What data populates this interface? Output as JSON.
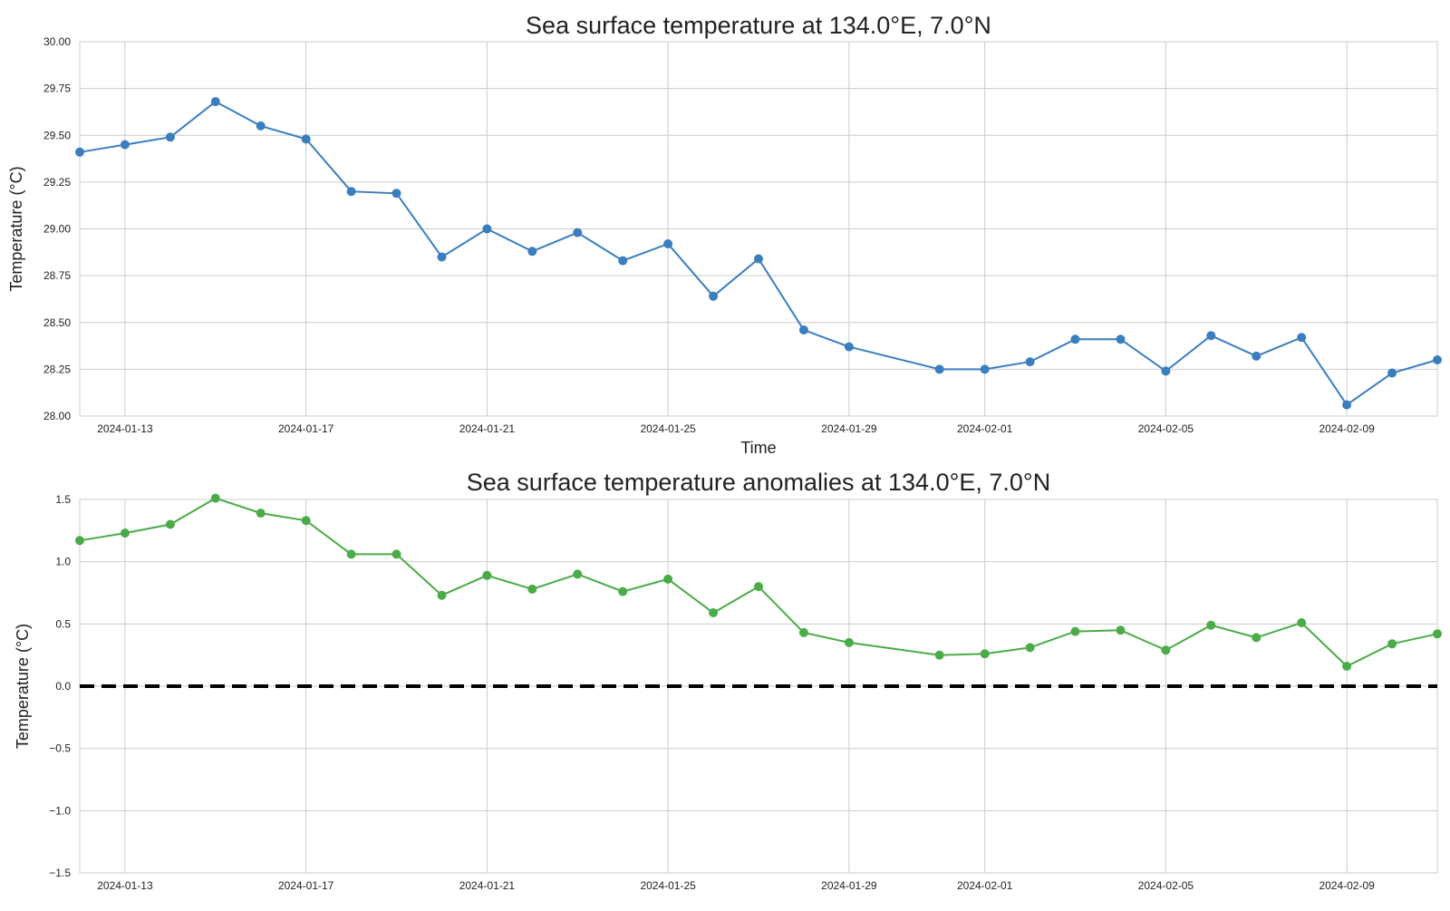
{
  "chart_data": [
    {
      "type": "line",
      "title": "Sea surface temperature at 134.0°E, 7.0°N",
      "xlabel": "Time",
      "ylabel": "Temperature (°C)",
      "ylim": [
        28.0,
        30.0
      ],
      "xlim": [
        "2024-01-12",
        "2024-02-11"
      ],
      "grid": true,
      "yticks": [
        "28.00",
        "28.25",
        "28.50",
        "28.75",
        "29.00",
        "29.25",
        "29.50",
        "29.75",
        "30.00"
      ],
      "xticks": [
        "2024-01-13",
        "2024-01-17",
        "2024-01-21",
        "2024-01-25",
        "2024-01-29",
        "2024-02-01",
        "2024-02-05",
        "2024-02-09"
      ],
      "series": [
        {
          "color": "#3a7ebf",
          "x": [
            "2024-01-12",
            "2024-01-13",
            "2024-01-14",
            "2024-01-15",
            "2024-01-16",
            "2024-01-17",
            "2024-01-18",
            "2024-01-19",
            "2024-01-20",
            "2024-01-21",
            "2024-01-22",
            "2024-01-23",
            "2024-01-24",
            "2024-01-25",
            "2024-01-26",
            "2024-01-27",
            "2024-01-28",
            "2024-01-29",
            "2024-01-31",
            "2024-02-01",
            "2024-02-02",
            "2024-02-03",
            "2024-02-04",
            "2024-02-05",
            "2024-02-06",
            "2024-02-07",
            "2024-02-08",
            "2024-02-09",
            "2024-02-10",
            "2024-02-11"
          ],
          "values": [
            29.41,
            29.45,
            29.49,
            29.68,
            29.55,
            29.48,
            29.2,
            29.19,
            28.85,
            29.0,
            28.88,
            28.98,
            28.83,
            28.92,
            28.64,
            28.84,
            28.46,
            28.37,
            28.25,
            28.25,
            28.29,
            28.41,
            28.41,
            28.24,
            28.43,
            28.32,
            28.42,
            28.06,
            28.23,
            28.3
          ]
        }
      ]
    },
    {
      "type": "line",
      "title": "Sea surface temperature anomalies at 134.0°E, 7.0°N",
      "xlabel": "",
      "ylabel": "Temperature (°C)",
      "ylim": [
        -1.5,
        1.5
      ],
      "xlim": [
        "2024-01-12",
        "2024-02-11"
      ],
      "grid": true,
      "yticks": [
        "−1.5",
        "−1.0",
        "−0.5",
        "0.0",
        "0.5",
        "1.0",
        "1.5"
      ],
      "xticks": [
        "2024-01-13",
        "2024-01-17",
        "2024-01-21",
        "2024-01-25",
        "2024-01-29",
        "2024-02-01",
        "2024-02-05",
        "2024-02-09"
      ],
      "reference_line": {
        "y": 0.0,
        "color": "#000000",
        "style": "dashed"
      },
      "series": [
        {
          "color": "#4aab48",
          "x": [
            "2024-01-12",
            "2024-01-13",
            "2024-01-14",
            "2024-01-15",
            "2024-01-16",
            "2024-01-17",
            "2024-01-18",
            "2024-01-19",
            "2024-01-20",
            "2024-01-21",
            "2024-01-22",
            "2024-01-23",
            "2024-01-24",
            "2024-01-25",
            "2024-01-26",
            "2024-01-27",
            "2024-01-28",
            "2024-01-29",
            "2024-01-31",
            "2024-02-01",
            "2024-02-02",
            "2024-02-03",
            "2024-02-04",
            "2024-02-05",
            "2024-02-06",
            "2024-02-07",
            "2024-02-08",
            "2024-02-09",
            "2024-02-10",
            "2024-02-11"
          ],
          "values": [
            1.17,
            1.23,
            1.3,
            1.51,
            1.39,
            1.33,
            1.06,
            1.06,
            0.73,
            0.89,
            0.78,
            0.9,
            0.76,
            0.86,
            0.59,
            0.8,
            0.43,
            0.35,
            0.25,
            0.26,
            0.31,
            0.44,
            0.45,
            0.29,
            0.49,
            0.39,
            0.51,
            0.16,
            0.34,
            0.42
          ]
        }
      ]
    }
  ]
}
